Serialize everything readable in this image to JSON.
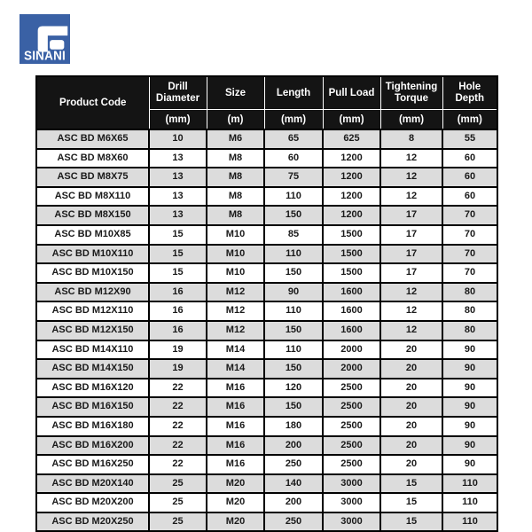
{
  "logo": {
    "text": "SINANI",
    "bg_color": "#3a61a5",
    "mark": "stylized-G"
  },
  "colors": {
    "header_bg": "#141414",
    "header_text": "#ffffff",
    "row_even": "#ffffff",
    "row_odd": "#dcdcdc",
    "border": "#000000",
    "body_text": "#1a1a1a",
    "logo_blue": "#3a61a5"
  },
  "table": {
    "columns": [
      {
        "label": "Product Code",
        "unit": ""
      },
      {
        "label": "Drill Diameter",
        "unit": "(mm)"
      },
      {
        "label": "Size",
        "unit": "(m)"
      },
      {
        "label": "Length",
        "unit": "(mm)"
      },
      {
        "label": "Pull Load",
        "unit": "(mm)"
      },
      {
        "label": "Tightening Torque",
        "unit": "(mm)"
      },
      {
        "label": "Hole Depth",
        "unit": "(mm)"
      }
    ],
    "rows": [
      [
        "ASC BD M6X65",
        "10",
        "M6",
        "65",
        "625",
        "8",
        "55"
      ],
      [
        "ASC BD M8X60",
        "13",
        "M8",
        "60",
        "1200",
        "12",
        "60"
      ],
      [
        "ASC BD M8X75",
        "13",
        "M8",
        "75",
        "1200",
        "12",
        "60"
      ],
      [
        "ASC BD M8X110",
        "13",
        "M8",
        "110",
        "1200",
        "12",
        "60"
      ],
      [
        "ASC BD M8X150",
        "13",
        "M8",
        "150",
        "1200",
        "17",
        "70"
      ],
      [
        "ASC BD M10X85",
        "15",
        "M10",
        "85",
        "1500",
        "17",
        "70"
      ],
      [
        "ASC BD M10X110",
        "15",
        "M10",
        "110",
        "1500",
        "17",
        "70"
      ],
      [
        "ASC BD M10X150",
        "15",
        "M10",
        "150",
        "1500",
        "17",
        "70"
      ],
      [
        "ASC BD M12X90",
        "16",
        "M12",
        "90",
        "1600",
        "12",
        "80"
      ],
      [
        "ASC BD M12X110",
        "16",
        "M12",
        "110",
        "1600",
        "12",
        "80"
      ],
      [
        "ASC BD M12X150",
        "16",
        "M12",
        "150",
        "1600",
        "12",
        "80"
      ],
      [
        "ASC BD M14X110",
        "19",
        "M14",
        "110",
        "2000",
        "20",
        "90"
      ],
      [
        "ASC BD M14X150",
        "19",
        "M14",
        "150",
        "2000",
        "20",
        "90"
      ],
      [
        "ASC BD M16X120",
        "22",
        "M16",
        "120",
        "2500",
        "20",
        "90"
      ],
      [
        "ASC BD M16X150",
        "22",
        "M16",
        "150",
        "2500",
        "20",
        "90"
      ],
      [
        "ASC BD M16X180",
        "22",
        "M16",
        "180",
        "2500",
        "20",
        "90"
      ],
      [
        "ASC BD M16X200",
        "22",
        "M16",
        "200",
        "2500",
        "20",
        "90"
      ],
      [
        "ASC BD M16X250",
        "22",
        "M16",
        "250",
        "2500",
        "20",
        "90"
      ],
      [
        "ASC BD M20X140",
        "25",
        "M20",
        "140",
        "3000",
        "15",
        "110"
      ],
      [
        "ASC BD M20X200",
        "25",
        "M20",
        "200",
        "3000",
        "15",
        "110"
      ],
      [
        "ASC BD M20X250",
        "25",
        "M20",
        "250",
        "3000",
        "15",
        "110"
      ]
    ]
  }
}
